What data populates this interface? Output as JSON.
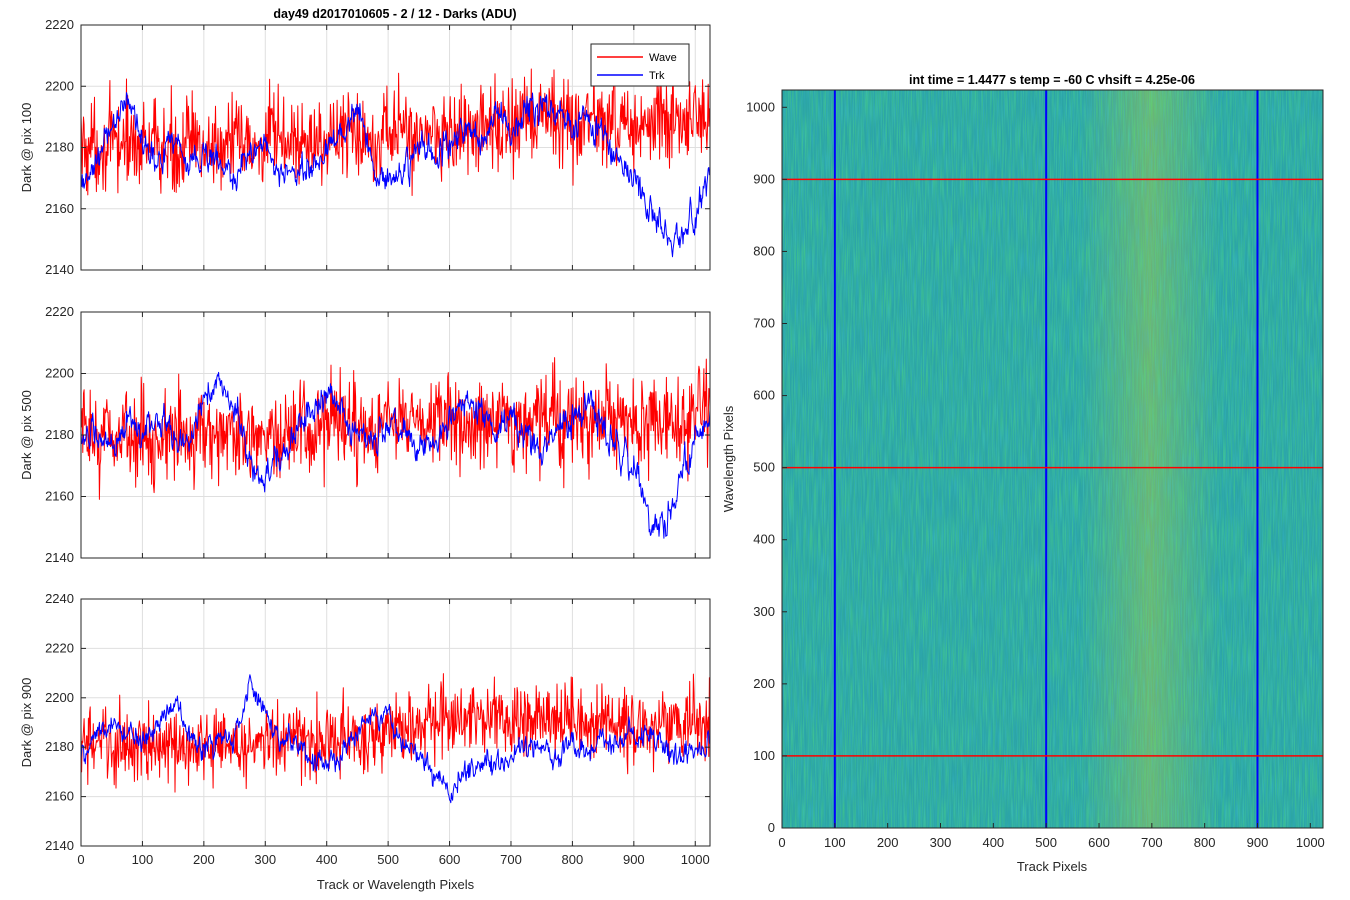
{
  "figure_title": "day49 d2017010605 - 2 / 12 - Darks (ADU)",
  "colors": {
    "wave": "#ff0000",
    "trk": "#0000ff",
    "grid": "#dfdfdf",
    "axis": "#262626"
  },
  "chart_data": [
    {
      "type": "line",
      "title": "day49 d2017010605 - 2 / 12 - Darks (ADU)",
      "xlabel": "",
      "ylabel": "Dark @ pix 100",
      "xlim": [
        0,
        1024
      ],
      "ylim": [
        2140,
        2220
      ],
      "xticks": [
        0,
        100,
        200,
        300,
        400,
        500,
        600,
        700,
        800,
        900,
        1000
      ],
      "yticks": [
        2140,
        2160,
        2180,
        2200,
        2220
      ],
      "grid": true,
      "legend": {
        "position": "top-right",
        "entries": [
          "Wave",
          "Trk"
        ]
      },
      "series": [
        {
          "name": "Wave",
          "color": "#ff0000",
          "x": [
            0,
            25,
            50,
            75,
            100,
            125,
            150,
            175,
            200,
            225,
            250,
            275,
            300,
            325,
            350,
            375,
            400,
            425,
            450,
            475,
            500,
            525,
            550,
            575,
            600,
            625,
            650,
            675,
            700,
            725,
            750,
            775,
            800,
            825,
            850,
            875,
            900,
            925,
            950,
            975,
            1000,
            1024
          ],
          "y": [
            2180,
            2181,
            2180,
            2182,
            2181,
            2180,
            2179,
            2181,
            2180,
            2181,
            2182,
            2180,
            2181,
            2183,
            2182,
            2181,
            2183,
            2184,
            2185,
            2184,
            2186,
            2185,
            2184,
            2186,
            2185,
            2184,
            2186,
            2187,
            2186,
            2188,
            2189,
            2190,
            2189,
            2188,
            2189,
            2188,
            2187,
            2188,
            2187,
            2189,
            2188,
            2186
          ]
        },
        {
          "name": "Trk",
          "color": "#0000ff",
          "x": [
            0,
            25,
            50,
            75,
            100,
            125,
            150,
            175,
            200,
            225,
            250,
            275,
            300,
            325,
            350,
            375,
            400,
            425,
            450,
            475,
            500,
            525,
            550,
            575,
            600,
            625,
            650,
            675,
            700,
            725,
            750,
            775,
            800,
            825,
            850,
            875,
            900,
            925,
            950,
            975,
            1000,
            1024
          ],
          "y": [
            2165,
            2175,
            2186,
            2196,
            2182,
            2176,
            2184,
            2174,
            2178,
            2175,
            2168,
            2178,
            2182,
            2170,
            2174,
            2172,
            2180,
            2186,
            2194,
            2176,
            2168,
            2172,
            2180,
            2177,
            2182,
            2186,
            2183,
            2190,
            2186,
            2192,
            2196,
            2192,
            2186,
            2190,
            2183,
            2175,
            2172,
            2158,
            2155,
            2150,
            2158,
            2170
          ]
        }
      ]
    },
    {
      "type": "line",
      "title": "",
      "xlabel": "",
      "ylabel": "Dark @ pix 500",
      "xlim": [
        0,
        1024
      ],
      "ylim": [
        2140,
        2220
      ],
      "xticks": [
        0,
        100,
        200,
        300,
        400,
        500,
        600,
        700,
        800,
        900,
        1000
      ],
      "yticks": [
        2140,
        2160,
        2180,
        2200,
        2220
      ],
      "grid": true,
      "series": [
        {
          "name": "Wave",
          "color": "#ff0000",
          "x": [
            0,
            25,
            50,
            75,
            100,
            125,
            150,
            175,
            200,
            225,
            250,
            275,
            300,
            325,
            350,
            375,
            400,
            425,
            450,
            475,
            500,
            525,
            550,
            575,
            600,
            625,
            650,
            675,
            700,
            725,
            750,
            775,
            800,
            825,
            850,
            875,
            900,
            925,
            950,
            975,
            1000,
            1024
          ],
          "y": [
            2180,
            2179,
            2181,
            2180,
            2178,
            2180,
            2179,
            2181,
            2182,
            2180,
            2179,
            2181,
            2180,
            2178,
            2181,
            2180,
            2182,
            2183,
            2181,
            2180,
            2184,
            2185,
            2182,
            2184,
            2185,
            2183,
            2184,
            2186,
            2185,
            2184,
            2186,
            2185,
            2184,
            2183,
            2185,
            2184,
            2183,
            2182,
            2184,
            2186,
            2187,
            2189
          ]
        },
        {
          "name": "Trk",
          "color": "#0000ff",
          "x": [
            0,
            25,
            50,
            75,
            100,
            125,
            150,
            175,
            200,
            225,
            250,
            275,
            300,
            325,
            350,
            375,
            400,
            425,
            450,
            475,
            500,
            525,
            550,
            575,
            600,
            625,
            650,
            675,
            700,
            725,
            750,
            775,
            800,
            825,
            850,
            875,
            900,
            925,
            950,
            975,
            1000,
            1024
          ],
          "y": [
            2182,
            2178,
            2176,
            2184,
            2180,
            2186,
            2180,
            2176,
            2192,
            2198,
            2190,
            2170,
            2166,
            2174,
            2180,
            2188,
            2194,
            2190,
            2180,
            2178,
            2185,
            2182,
            2176,
            2174,
            2184,
            2190,
            2188,
            2180,
            2186,
            2178,
            2174,
            2180,
            2186,
            2190,
            2182,
            2176,
            2170,
            2154,
            2150,
            2165,
            2178,
            2182
          ]
        }
      ]
    },
    {
      "type": "line",
      "title": "",
      "xlabel": "Track or Wavelength Pixels",
      "ylabel": "Dark @ pix 900",
      "xlim": [
        0,
        1024
      ],
      "ylim": [
        2140,
        2240
      ],
      "xticks": [
        0,
        100,
        200,
        300,
        400,
        500,
        600,
        700,
        800,
        900,
        1000
      ],
      "yticks": [
        2140,
        2160,
        2180,
        2200,
        2220,
        2240
      ],
      "grid": true,
      "series": [
        {
          "name": "Wave",
          "color": "#ff0000",
          "x": [
            0,
            25,
            50,
            75,
            100,
            125,
            150,
            175,
            200,
            225,
            250,
            275,
            300,
            325,
            350,
            375,
            400,
            425,
            450,
            475,
            500,
            525,
            550,
            575,
            600,
            625,
            650,
            675,
            700,
            725,
            750,
            775,
            800,
            825,
            850,
            875,
            900,
            925,
            950,
            975,
            1000,
            1024
          ],
          "y": [
            2182,
            2181,
            2180,
            2182,
            2180,
            2179,
            2181,
            2180,
            2182,
            2181,
            2180,
            2181,
            2182,
            2183,
            2184,
            2182,
            2183,
            2185,
            2184,
            2185,
            2186,
            2187,
            2189,
            2191,
            2190,
            2192,
            2191,
            2193,
            2190,
            2191,
            2192,
            2190,
            2191,
            2189,
            2190,
            2189,
            2188,
            2189,
            2190,
            2188,
            2189,
            2190
          ]
        },
        {
          "name": "Trk",
          "color": "#0000ff",
          "x": [
            0,
            25,
            50,
            75,
            100,
            125,
            150,
            175,
            200,
            225,
            250,
            275,
            300,
            325,
            350,
            375,
            400,
            425,
            450,
            475,
            500,
            525,
            550,
            575,
            600,
            625,
            650,
            675,
            700,
            725,
            750,
            775,
            800,
            825,
            850,
            875,
            900,
            925,
            950,
            975,
            1000,
            1024
          ],
          "y": [
            2176,
            2184,
            2190,
            2186,
            2182,
            2192,
            2198,
            2186,
            2178,
            2182,
            2184,
            2205,
            2192,
            2184,
            2180,
            2176,
            2174,
            2178,
            2188,
            2194,
            2190,
            2180,
            2176,
            2168,
            2162,
            2170,
            2174,
            2172,
            2178,
            2182,
            2180,
            2176,
            2182,
            2178,
            2184,
            2180,
            2186,
            2184,
            2180,
            2176,
            2178,
            2180
          ]
        }
      ]
    },
    {
      "type": "heatmap",
      "title": "int time = 1.4477 s    temp = -60 C    vhsift = 4.25e-06",
      "xlabel": "Track Pixels",
      "ylabel": "Wavelength Pixels",
      "xlim": [
        0,
        1024
      ],
      "ylim": [
        0,
        1024
      ],
      "xticks": [
        0,
        100,
        200,
        300,
        400,
        500,
        600,
        700,
        800,
        900,
        1000
      ],
      "yticks": [
        0,
        100,
        200,
        300,
        400,
        500,
        600,
        700,
        800,
        900,
        1000
      ],
      "colormap": "parula",
      "value_range_adu": [
        2160,
        2200
      ],
      "typical_value_adu": 2182,
      "brighter_band_track_pixels": [
        600,
        700
      ],
      "vertical_markers": {
        "color": "#0000ff",
        "x": [
          100,
          500,
          900
        ]
      },
      "horizontal_markers": {
        "color": "#ff0000",
        "y": [
          100,
          500,
          900
        ]
      }
    }
  ]
}
